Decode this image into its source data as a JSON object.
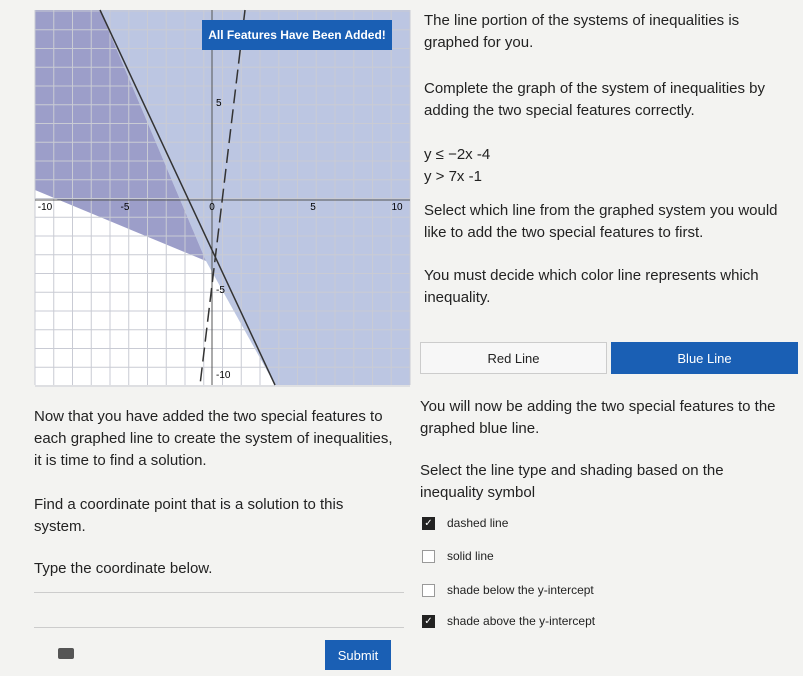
{
  "graph": {
    "banner": "All Features Have Been Added!",
    "x_tick_labels": [
      "-10",
      "-5",
      "0",
      "5",
      "10"
    ],
    "y_tick_labels": [
      "5",
      "-5",
      "-10"
    ]
  },
  "instructions": {
    "intro": "The line portion of the systems of inequalities is graphed for you.",
    "task": "Complete the graph of the system of inequalities by adding the two special features correctly.",
    "inequalities": [
      "y ≤ −2x -4",
      "y > 7x -1"
    ],
    "select_line": "Select which line from the graphed system you would like to add the two special features to first.",
    "decide": "You must decide which color line represents which inequality.",
    "buttons": [
      {
        "label": "Red Line",
        "selected": false
      },
      {
        "label": "Blue Line",
        "selected": true
      }
    ],
    "adding": "You will now be adding the two special features to the graphed blue line.",
    "select_type": "Select the line type and shading based on the inequality symbol",
    "options": [
      {
        "label": "dashed line",
        "checked": true
      },
      {
        "label": "solid line",
        "checked": false
      },
      {
        "label": "shade below the y-intercept",
        "checked": false
      },
      {
        "label": "shade above the y-intercept",
        "checked": true
      }
    ]
  },
  "solution": {
    "intro": "Now that you have added the two special features to each graphed line to create the system of inequalities, it is time to find a solution.",
    "find": "Find a coordinate point that is a solution to this system.",
    "type": "Type the coordinate below.",
    "submit": "Submit"
  }
}
